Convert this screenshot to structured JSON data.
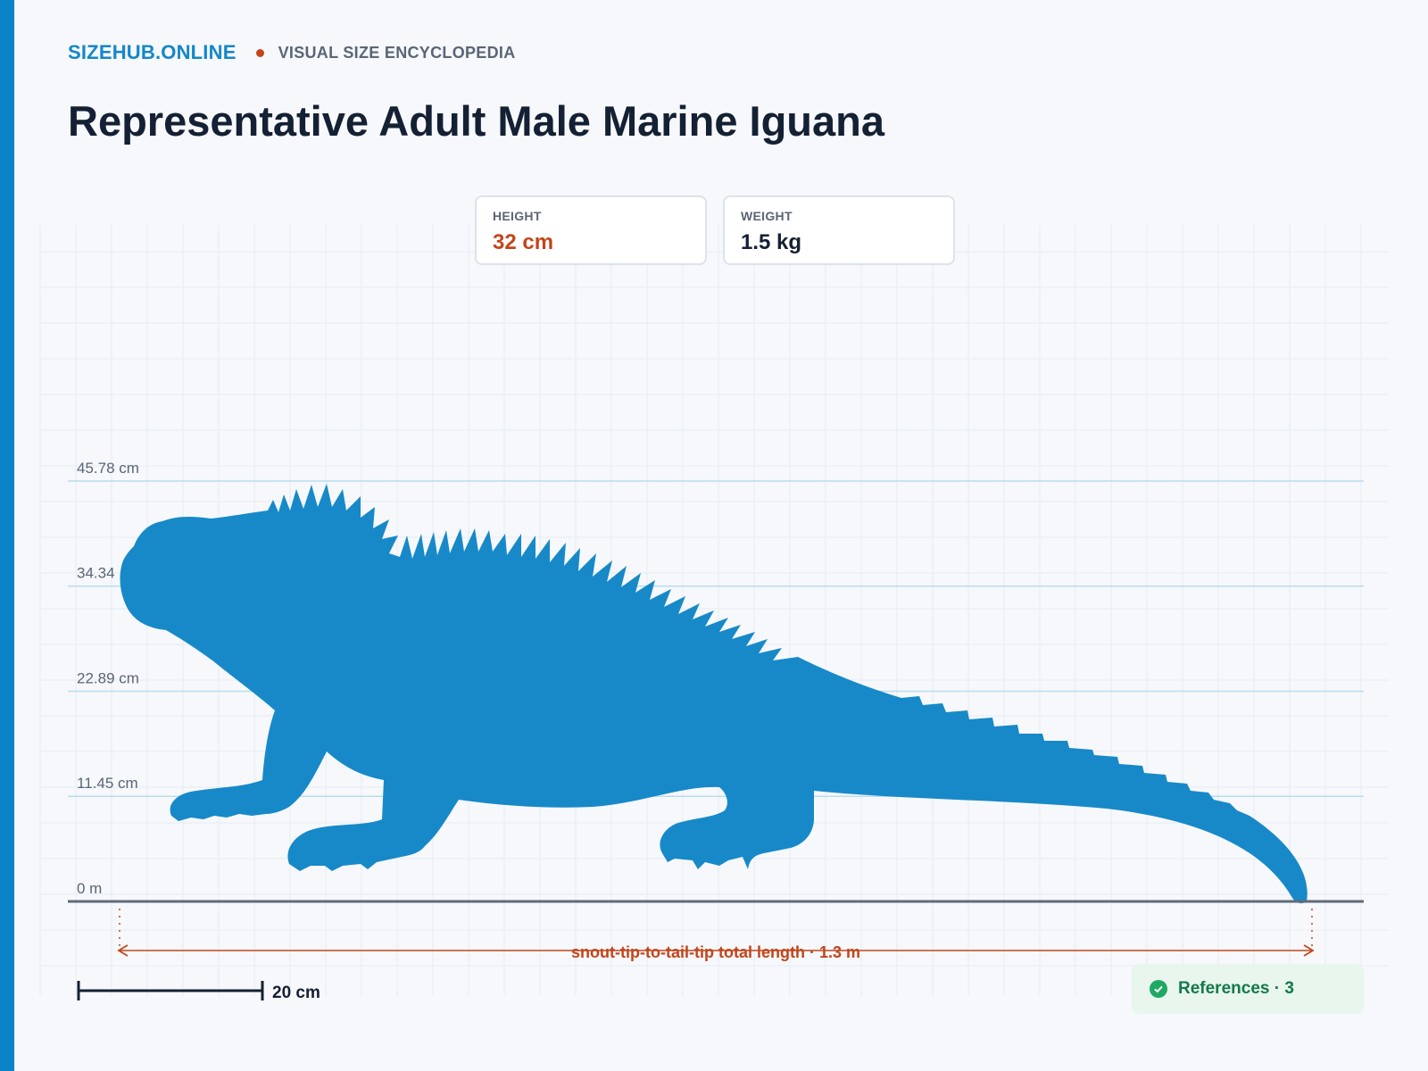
{
  "site": {
    "brand": "SIZEHUB.ONLINE",
    "tagline": "VISUAL SIZE ENCYCLOPEDIA"
  },
  "page": {
    "title": "Representative Adult Male Marine Iguana"
  },
  "stats": {
    "height": {
      "label": "HEIGHT",
      "value": "32 cm",
      "color": "#c2461c"
    },
    "weight": {
      "label": "WEIGHT",
      "value": "1.5 kg",
      "color": "#142033"
    }
  },
  "chart_data": {
    "type": "diagram",
    "axis_ticks": [
      {
        "value": 0,
        "label": "0 m"
      },
      {
        "value": 11.45,
        "label": "11.45 cm"
      },
      {
        "value": 22.89,
        "label": "22.89 cm"
      },
      {
        "value": 34.34,
        "label": "34.34"
      },
      {
        "value": 45.78,
        "label": "45.78 cm"
      }
    ],
    "y_max_cm": 45.78,
    "silhouette": {
      "name": "marine-iguana",
      "color": "#1789c8"
    },
    "length_annotation": "snout-tip-to-tail-tip total length · 1.3 m",
    "scale_bar": {
      "label": "20 cm",
      "value_cm": 20
    },
    "grid": true
  },
  "references": {
    "label": "References · 3",
    "icon": "check-circle-icon"
  },
  "colors": {
    "accent": "#0a84c8",
    "brand": "#1487c7",
    "annotation": "#c2461c",
    "ink": "#142033"
  }
}
